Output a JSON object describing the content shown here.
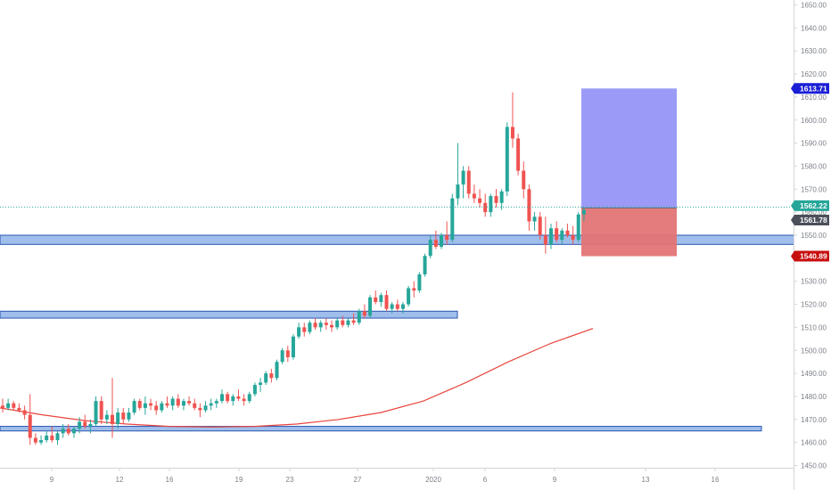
{
  "chart_data": {
    "type": "candlestick",
    "symbol": "",
    "title": "",
    "y_ticks": [
      "1450.00",
      "1460.00",
      "1470.00",
      "1480.00",
      "1490.00",
      "1500.00",
      "1510.00",
      "1520.00",
      "1530.00",
      "1540.00",
      "1550.00",
      "1560.00",
      "1570.00",
      "1580.00",
      "1590.00",
      "1600.00",
      "1610.00",
      "1620.00",
      "1630.00",
      "1640.00",
      "1650.00"
    ],
    "ylim": [
      1450,
      1650
    ],
    "x_ticks": [
      "9",
      "12",
      "16",
      "19",
      "23",
      "27",
      "2020",
      "6",
      "9",
      "13",
      "16"
    ],
    "candles": [
      [
        1476,
        1479,
        1473,
        1475
      ],
      [
        1475,
        1479,
        1474,
        1477
      ],
      [
        1477,
        1478,
        1474,
        1475
      ],
      [
        1475,
        1477,
        1473,
        1474
      ],
      [
        1474,
        1476,
        1470,
        1472
      ],
      [
        1472,
        1481,
        1459,
        1462
      ],
      [
        1462,
        1464,
        1459,
        1460
      ],
      [
        1460,
        1463,
        1459,
        1461
      ],
      [
        1461,
        1465,
        1460,
        1463
      ],
      [
        1463,
        1467,
        1460,
        1461
      ],
      [
        1461,
        1465,
        1459,
        1464
      ],
      [
        1464,
        1468,
        1462,
        1466
      ],
      [
        1466,
        1468,
        1463,
        1464
      ],
      [
        1464,
        1467,
        1462,
        1466
      ],
      [
        1466,
        1471,
        1464,
        1469
      ],
      [
        1469,
        1472,
        1466,
        1467
      ],
      [
        1467,
        1470,
        1464,
        1468
      ],
      [
        1468,
        1480,
        1467,
        1478
      ],
      [
        1478,
        1480,
        1468,
        1470
      ],
      [
        1470,
        1474,
        1468,
        1472
      ],
      [
        1472,
        1488,
        1462,
        1468
      ],
      [
        1468,
        1475,
        1466,
        1473
      ],
      [
        1473,
        1475,
        1468,
        1470
      ],
      [
        1470,
        1475,
        1469,
        1473
      ],
      [
        1473,
        1479,
        1472,
        1478
      ],
      [
        1478,
        1479,
        1474,
        1475
      ],
      [
        1475,
        1480,
        1472,
        1477
      ],
      [
        1477,
        1479,
        1474,
        1476
      ],
      [
        1476,
        1478,
        1472,
        1474
      ],
      [
        1474,
        1478,
        1473,
        1477
      ],
      [
        1477,
        1480,
        1475,
        1476
      ],
      [
        1476,
        1480,
        1474,
        1479
      ],
      [
        1479,
        1481,
        1475,
        1476
      ],
      [
        1476,
        1479,
        1474,
        1478
      ],
      [
        1478,
        1480,
        1476,
        1477
      ],
      [
        1477,
        1479,
        1474,
        1475
      ],
      [
        1475,
        1477,
        1471,
        1474
      ],
      [
        1474,
        1478,
        1473,
        1476
      ],
      [
        1476,
        1479,
        1474,
        1477
      ],
      [
        1477,
        1479,
        1475,
        1478
      ],
      [
        1478,
        1483,
        1477,
        1481
      ],
      [
        1481,
        1482,
        1477,
        1478
      ],
      [
        1478,
        1481,
        1476,
        1480
      ],
      [
        1480,
        1483,
        1478,
        1479
      ],
      [
        1479,
        1481,
        1476,
        1478
      ],
      [
        1478,
        1482,
        1477,
        1481
      ],
      [
        1481,
        1486,
        1480,
        1485
      ],
      [
        1485,
        1488,
        1482,
        1486
      ],
      [
        1486,
        1491,
        1485,
        1490
      ],
      [
        1490,
        1492,
        1486,
        1488
      ],
      [
        1488,
        1496,
        1487,
        1495
      ],
      [
        1495,
        1501,
        1494,
        1500
      ],
      [
        1500,
        1502,
        1495,
        1497
      ],
      [
        1497,
        1507,
        1496,
        1506
      ],
      [
        1506,
        1512,
        1505,
        1510
      ],
      [
        1510,
        1512,
        1506,
        1508
      ],
      [
        1508,
        1513,
        1507,
        1512
      ],
      [
        1512,
        1514,
        1509,
        1510
      ],
      [
        1510,
        1513,
        1508,
        1512
      ],
      [
        1512,
        1514,
        1509,
        1511
      ],
      [
        1511,
        1513,
        1508,
        1510
      ],
      [
        1510,
        1514,
        1509,
        1513
      ],
      [
        1513,
        1515,
        1510,
        1511
      ],
      [
        1511,
        1514,
        1510,
        1513
      ],
      [
        1513,
        1516,
        1511,
        1512
      ],
      [
        1512,
        1518,
        1511,
        1517
      ],
      [
        1517,
        1520,
        1514,
        1515
      ],
      [
        1515,
        1524,
        1514,
        1523
      ],
      [
        1523,
        1526,
        1520,
        1521
      ],
      [
        1521,
        1525,
        1519,
        1524
      ],
      [
        1524,
        1526,
        1517,
        1518
      ],
      [
        1518,
        1521,
        1516,
        1520
      ],
      [
        1520,
        1522,
        1517,
        1518
      ],
      [
        1518,
        1521,
        1516,
        1520
      ],
      [
        1520,
        1528,
        1519,
        1527
      ],
      [
        1527,
        1530,
        1523,
        1526
      ],
      [
        1526,
        1534,
        1525,
        1533
      ],
      [
        1533,
        1542,
        1532,
        1541
      ],
      [
        1541,
        1550,
        1540,
        1548
      ],
      [
        1548,
        1552,
        1544,
        1545
      ],
      [
        1545,
        1551,
        1544,
        1550
      ],
      [
        1550,
        1556,
        1546,
        1548
      ],
      [
        1548,
        1568,
        1547,
        1566
      ],
      [
        1566,
        1590,
        1563,
        1572
      ],
      [
        1572,
        1580,
        1566,
        1578
      ],
      [
        1578,
        1580,
        1566,
        1568
      ],
      [
        1568,
        1572,
        1564,
        1566
      ],
      [
        1566,
        1570,
        1562,
        1564
      ],
      [
        1564,
        1568,
        1558,
        1560
      ],
      [
        1560,
        1568,
        1558,
        1567
      ],
      [
        1567,
        1570,
        1562,
        1564
      ],
      [
        1564,
        1570,
        1561,
        1569
      ],
      [
        1569,
        1599,
        1567,
        1597
      ],
      [
        1597,
        1612,
        1588,
        1592
      ],
      [
        1592,
        1594,
        1576,
        1578
      ],
      [
        1578,
        1582,
        1566,
        1570
      ],
      [
        1570,
        1572,
        1552,
        1556
      ],
      [
        1556,
        1560,
        1552,
        1558
      ],
      [
        1558,
        1560,
        1548,
        1550
      ],
      [
        1550,
        1558,
        1542,
        1546
      ],
      [
        1546,
        1555,
        1544,
        1553
      ],
      [
        1553,
        1556,
        1547,
        1548
      ],
      [
        1548,
        1553,
        1546,
        1552
      ],
      [
        1552,
        1555,
        1549,
        1550
      ],
      [
        1550,
        1554,
        1546,
        1548
      ],
      [
        1548,
        1560,
        1547,
        1559
      ],
      [
        1559,
        1562,
        1556,
        1561
      ]
    ],
    "moving_average": [
      1475,
      1472,
      1469.5,
      1468,
      1467,
      1466.7,
      1467,
      1468,
      1470,
      1473,
      1478,
      1486,
      1495,
      1503,
      1509.5
    ],
    "zones": [
      {
        "from": 1546,
        "to": 1550
      },
      {
        "from": 1514,
        "to": 1517
      },
      {
        "from": 1465,
        "to": 1467
      }
    ],
    "position": {
      "type": "long",
      "target": 1613.71,
      "entry": 1561.78,
      "stop": 1540.89
    },
    "current_price": 1562.22,
    "price_labels": [
      {
        "value": "1613.71",
        "price": 1613.71,
        "color": "#1a1fd6",
        "text_color": "#ffffff"
      },
      {
        "value": "1562.22",
        "price": 1562.22,
        "color": "#26a69a",
        "text_color": "#ffffff"
      },
      {
        "value": "1561.78",
        "price": 1561.78,
        "color": "#4a4f59",
        "text_color": "#ffffff"
      },
      {
        "value": "1540.89",
        "price": 1540.89,
        "color": "#c80f0f",
        "text_color": "#ffffff"
      }
    ],
    "colors": {
      "up": "#26a69a",
      "down": "#ef5350",
      "ma": "#e8453c",
      "zone_fill": "#8fb3e8",
      "zone_stroke": "#2a57b0",
      "profit": "#9b9bf7",
      "loss": "#e37475"
    }
  }
}
